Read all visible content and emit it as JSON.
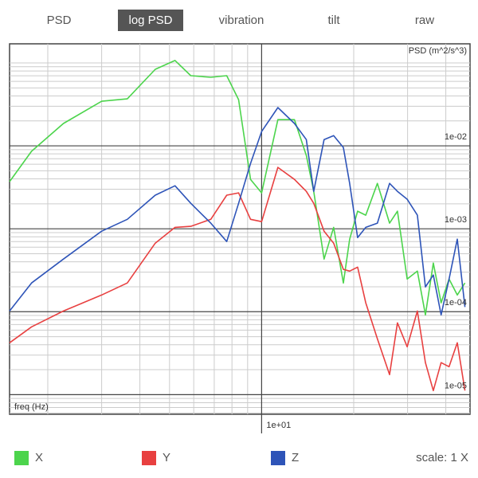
{
  "tabs": [
    "PSD",
    "log PSD",
    "vibration",
    "tilt",
    "raw"
  ],
  "selected_tab": 1,
  "scale_label": "scale: 1 X",
  "chart_data": {
    "type": "line",
    "xscale": "log",
    "yscale": "log",
    "y_label": "PSD (m^2/s^3)",
    "x_label": "freq (Hz)",
    "xlim": [
      1.5,
      48
    ],
    "ylim": [
      5.8e-06,
      0.17
    ],
    "xticks": [
      {
        "value": 10,
        "label": "1e+01"
      }
    ],
    "yticks": [
      {
        "value": 1e-05,
        "label": "1e-05"
      },
      {
        "value": 0.0001,
        "label": "1e-04"
      },
      {
        "value": 0.001,
        "label": "1e-03"
      },
      {
        "value": 0.01,
        "label": "1e-02"
      }
    ],
    "x_minor_ticks": [
      2,
      3,
      4,
      5,
      6,
      7,
      8,
      9,
      20,
      30,
      40
    ],
    "y_minor_ticks": [
      6e-06,
      7e-06,
      8e-06,
      9e-06,
      2e-05,
      3e-05,
      4e-05,
      5e-05,
      6e-05,
      7e-05,
      8e-05,
      9e-05,
      0.0002,
      0.0003,
      0.0004,
      0.0005,
      0.0006,
      0.0007,
      0.0008,
      0.0009,
      0.002,
      0.003,
      0.004,
      0.005,
      0.006,
      0.007,
      0.008,
      0.009,
      0.02,
      0.03,
      0.04,
      0.05,
      0.06,
      0.07,
      0.08,
      0.09,
      0.1
    ],
    "grid": true,
    "x": [
      1.5,
      1.77,
      2.25,
      3.0,
      3.64,
      4.49,
      5.21,
      5.87,
      6.82,
      7.69,
      8.41,
      9.2,
      10,
      11.3,
      12.8,
      14.0,
      14.8,
      16.0,
      17.2,
      18.5,
      19.4,
      20.6,
      21.9,
      23.9,
      26.2,
      27.8,
      29.9,
      32.3,
      34.3,
      36.4,
      38.6,
      41.0,
      43.6,
      46.2
    ],
    "series": [
      {
        "name": "X",
        "color": "#4cd44c",
        "values": [
          0.0037,
          0.0086,
          0.0186,
          0.0345,
          0.0369,
          0.0838,
          0.107,
          0.0702,
          0.0671,
          0.0702,
          0.0361,
          0.00394,
          0.00271,
          0.0207,
          0.0207,
          0.00767,
          0.00283,
          0.000431,
          0.00104,
          0.000222,
          0.00075,
          0.00163,
          0.00146,
          0.00353,
          0.00117,
          0.00163,
          0.000248,
          0.000309,
          9.16e-05,
          0.000386,
          0.000128,
          0.000248,
          0.000159,
          0.000222
        ]
      },
      {
        "name": "Y",
        "color": "#e84040",
        "values": [
          4.22e-05,
          6.56e-05,
          0.000102,
          0.000159,
          0.000222,
          0.000671,
          0.00104,
          0.00107,
          0.0013,
          0.00254,
          0.00271,
          0.0013,
          0.00122,
          0.0055,
          0.00394,
          0.00283,
          0.00203,
          0.000935,
          0.000671,
          0.000324,
          0.000309,
          0.000345,
          0.000128,
          4.71e-05,
          1.74e-05,
          7.33e-05,
          3.78e-05,
          0.000102,
          2.43e-05,
          1.12e-05,
          2.43e-05,
          2.17e-05,
          4.22e-05,
          1.12e-05
        ]
      },
      {
        "name": "Z",
        "color": "#2e54b8",
        "values": [
          0.000102,
          0.000222,
          0.000431,
          0.000935,
          0.0013,
          0.00254,
          0.0033,
          0.00203,
          0.00117,
          0.000702,
          0.00203,
          0.00614,
          0.0149,
          0.029,
          0.0186,
          0.0119,
          0.00283,
          0.0119,
          0.0133,
          0.00957,
          0.00353,
          0.000784,
          0.00104,
          0.00117,
          0.00353,
          0.00283,
          0.00227,
          0.00146,
          0.000199,
          0.000277,
          9.16e-05,
          0.000248,
          0.00075,
          0.000114
        ]
      }
    ]
  }
}
